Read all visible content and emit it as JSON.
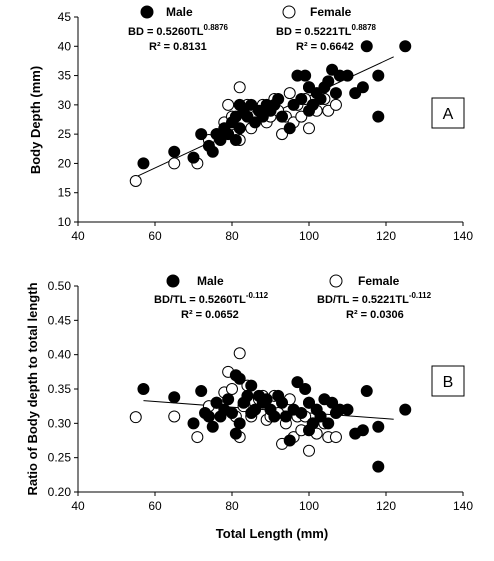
{
  "chart_data": [
    {
      "type": "scatter",
      "panel": "A",
      "xlabel": "",
      "ylabel": "Body Depth (mm)",
      "xlim": [
        40,
        140
      ],
      "ylim": [
        10,
        45
      ],
      "xticks": [
        "40",
        "60",
        "80",
        "100",
        "120",
        "140"
      ],
      "yticks": [
        "10",
        "15",
        "20",
        "25",
        "30",
        "35",
        "40",
        "45"
      ],
      "legend": {
        "placement": "top",
        "male": "Male",
        "female": "Female"
      },
      "annotations": {
        "male_eq": "BD = 0.5260TL",
        "male_exp": "0.8876",
        "male_r2": "R² = 0.8131",
        "female_eq": "BD = 0.5221TL",
        "female_exp": "0.8878",
        "female_r2": "R² = 0.6642"
      },
      "trendline": {
        "x": [
          55,
          122
        ],
        "y": [
          17.7,
          38.2
        ]
      },
      "series": [
        {
          "name": "Male",
          "marker": "filled",
          "x": [
            57,
            65,
            70,
            72,
            74,
            75,
            76,
            77,
            78,
            79,
            80,
            81,
            81,
            82,
            82,
            83,
            84,
            85,
            86,
            87,
            88,
            89,
            90,
            91,
            92,
            93,
            95,
            96,
            97,
            98,
            99,
            100,
            100,
            101,
            102,
            103,
            104,
            105,
            106,
            107,
            108,
            110,
            112,
            114,
            115,
            118,
            118,
            125
          ],
          "y": [
            20,
            22,
            21,
            25,
            23,
            22,
            25,
            24,
            26,
            25,
            27,
            24,
            28,
            30,
            26,
            29,
            28,
            30,
            27,
            29,
            28,
            30,
            29,
            30,
            31,
            28,
            26,
            30,
            35,
            31,
            35,
            29,
            33,
            30,
            32,
            31,
            33,
            34,
            36,
            32,
            35,
            35,
            32,
            33,
            40,
            28,
            35,
            40
          ]
        },
        {
          "name": "Female",
          "marker": "open",
          "x": [
            55,
            65,
            71,
            74,
            76,
            78,
            79,
            80,
            81,
            82,
            82,
            83,
            84,
            85,
            86,
            87,
            88,
            89,
            90,
            91,
            92,
            93,
            94,
            95,
            96,
            97,
            98,
            99,
            100,
            100,
            101,
            102,
            103,
            104,
            105,
            107
          ],
          "y": [
            17,
            20,
            20,
            24,
            25,
            27,
            30,
            28,
            25,
            33,
            24,
            27,
            30,
            26,
            28,
            29,
            30,
            27,
            28,
            31,
            29,
            25,
            28,
            32,
            27,
            30,
            28,
            31,
            26,
            33,
            30,
            29,
            32,
            31,
            29,
            30
          ]
        }
      ]
    },
    {
      "type": "scatter",
      "panel": "B",
      "xlabel": "Total Length (mm)",
      "ylabel": "Ratio of Body depth to total length",
      "xlim": [
        40,
        140
      ],
      "ylim": [
        0.2,
        0.5
      ],
      "xticks": [
        "40",
        "60",
        "80",
        "100",
        "120",
        "140"
      ],
      "yticks": [
        "0.20",
        "0.25",
        "0.30",
        "0.35",
        "0.40",
        "0.45",
        "0.50"
      ],
      "legend": {
        "placement": "top",
        "male": "Male",
        "female": "Female"
      },
      "annotations": {
        "male_eq": "BD/TL = 0.5260TL",
        "male_exp": "-0.112",
        "male_r2": "R² = 0.0652",
        "female_eq": "BD/TL = 0.5221TL",
        "female_exp": "-0.112",
        "female_r2": "R² = 0.0306"
      },
      "trendline": {
        "x": [
          57,
          122
        ],
        "y": [
          0.333,
          0.306
        ]
      },
      "series": [
        {
          "name": "Male",
          "marker": "filled",
          "x": [
            57,
            65,
            70,
            72,
            73,
            74,
            75,
            76,
            77,
            78,
            79,
            80,
            81,
            81,
            82,
            82,
            83,
            84,
            85,
            85,
            86,
            87,
            88,
            89,
            90,
            91,
            92,
            93,
            94,
            95,
            96,
            97,
            98,
            99,
            100,
            100,
            101,
            102,
            103,
            104,
            105,
            106,
            107,
            108,
            110,
            112,
            114,
            115,
            118,
            118,
            125
          ],
          "y": [
            0.35,
            0.338,
            0.3,
            0.347,
            0.315,
            0.31,
            0.295,
            0.33,
            0.31,
            0.32,
            0.335,
            0.315,
            0.285,
            0.37,
            0.365,
            0.3,
            0.33,
            0.34,
            0.355,
            0.315,
            0.32,
            0.34,
            0.33,
            0.335,
            0.32,
            0.31,
            0.34,
            0.33,
            0.31,
            0.275,
            0.32,
            0.36,
            0.315,
            0.35,
            0.29,
            0.33,
            0.3,
            0.32,
            0.31,
            0.335,
            0.3,
            0.33,
            0.315,
            0.32,
            0.32,
            0.285,
            0.29,
            0.347,
            0.295,
            0.237,
            0.32
          ]
        },
        {
          "name": "Female",
          "marker": "open",
          "x": [
            55,
            65,
            71,
            74,
            76,
            78,
            79,
            80,
            81,
            82,
            82,
            83,
            84,
            85,
            86,
            87,
            88,
            89,
            90,
            91,
            92,
            93,
            94,
            95,
            96,
            97,
            98,
            99,
            100,
            100,
            101,
            102,
            103,
            104,
            105,
            107
          ],
          "y": [
            0.309,
            0.31,
            0.28,
            0.325,
            0.33,
            0.345,
            0.375,
            0.35,
            0.31,
            0.402,
            0.28,
            0.325,
            0.355,
            0.31,
            0.33,
            0.335,
            0.34,
            0.305,
            0.31,
            0.34,
            0.315,
            0.27,
            0.3,
            0.335,
            0.28,
            0.31,
            0.29,
            0.31,
            0.26,
            0.33,
            0.3,
            0.285,
            0.31,
            0.3,
            0.28,
            0.28
          ]
        }
      ]
    }
  ]
}
